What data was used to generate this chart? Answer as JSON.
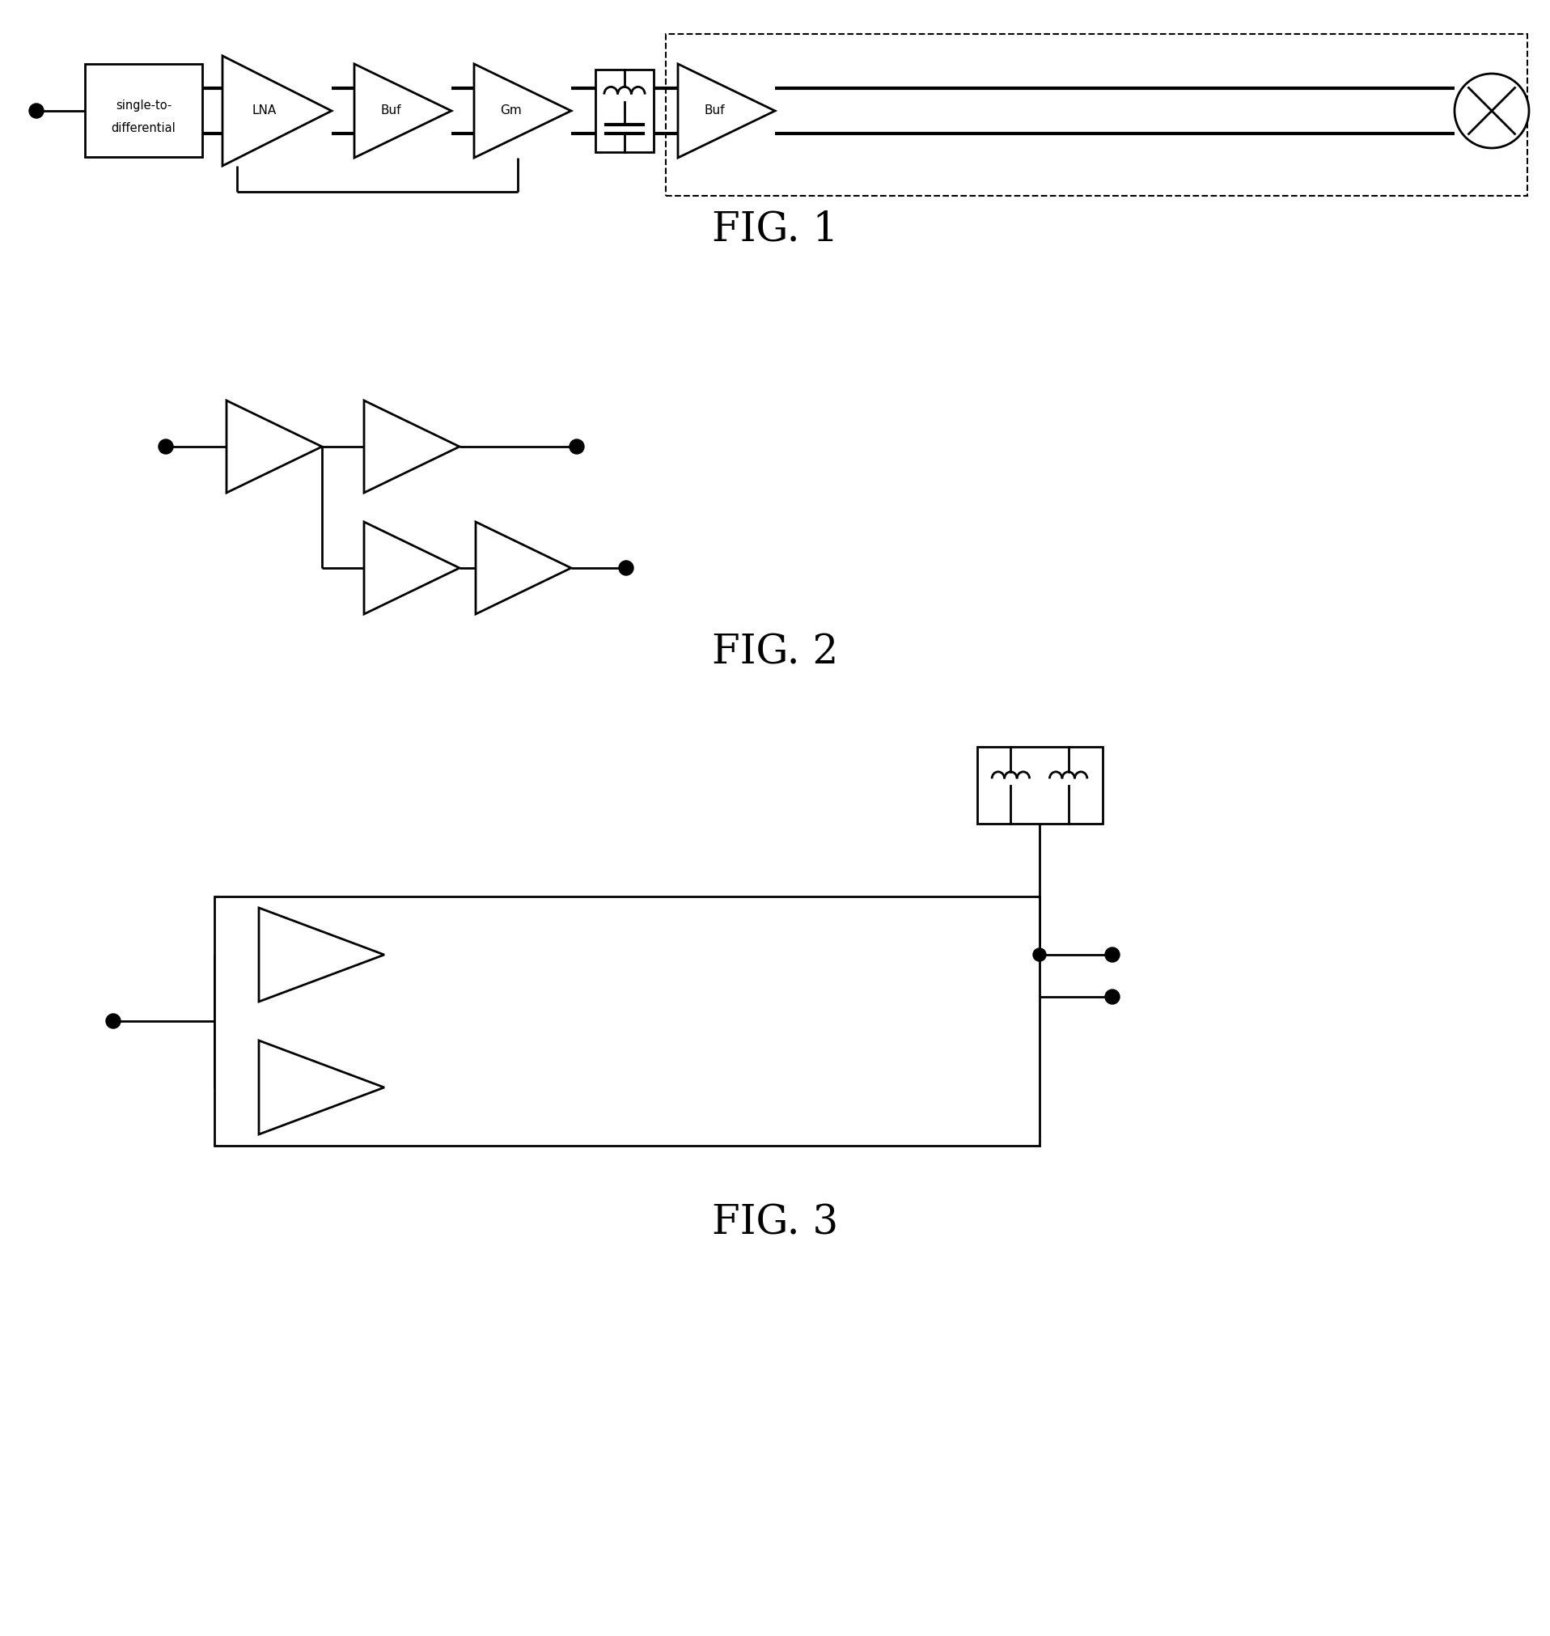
{
  "bg_color": "#ffffff",
  "line_color": "#000000",
  "lw": 2.0,
  "fig1_label": "FIG. 1",
  "fig2_label": "FIG. 2",
  "fig3_label": "FIG. 3",
  "label_fontsize": 36
}
